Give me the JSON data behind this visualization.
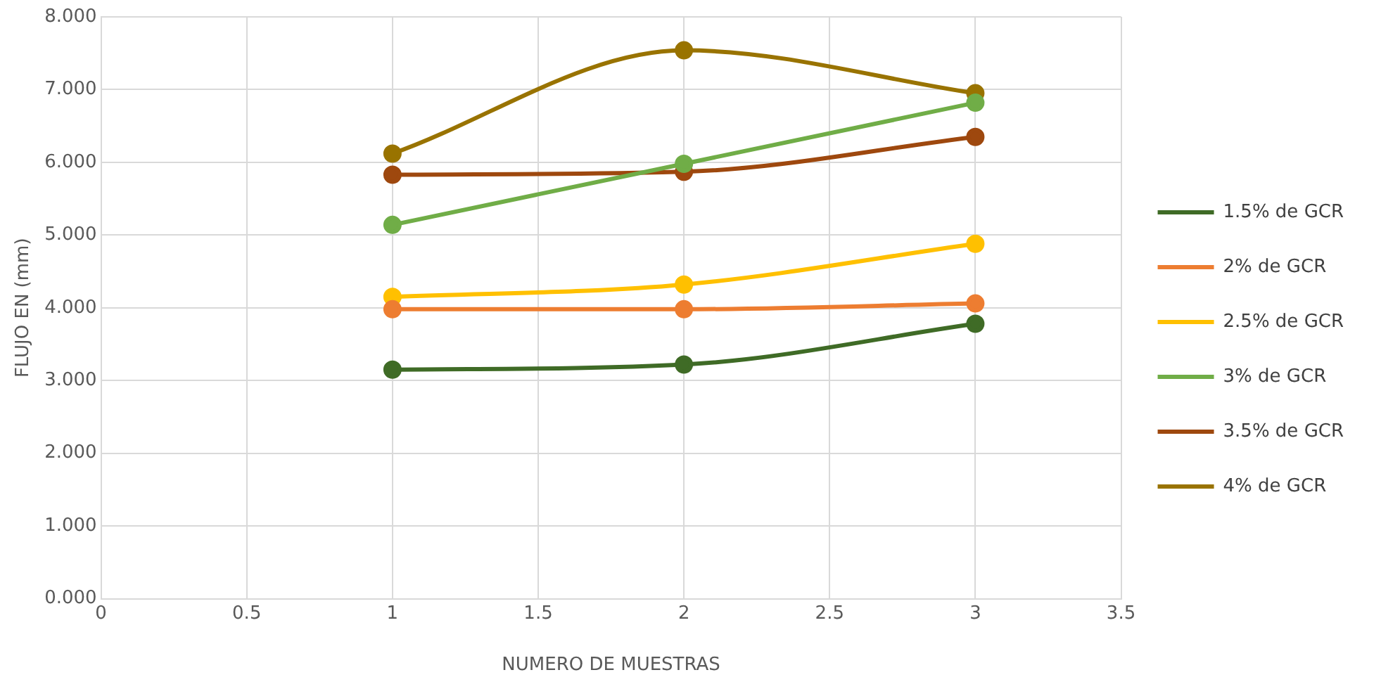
{
  "chart_data": {
    "type": "line",
    "xlabel": "NUMERO DE MUESTRAS",
    "ylabel": "FLUJO EN (mm)",
    "xlim": [
      0,
      3.5
    ],
    "xticks": [
      0,
      0.5,
      1,
      1.5,
      2,
      2.5,
      3,
      3.5
    ],
    "ylim": [
      0,
      8
    ],
    "yticks": [
      {
        "value": 0,
        "label": "0.000"
      },
      {
        "value": 1,
        "label": "1.000"
      },
      {
        "value": 2,
        "label": "2.000"
      },
      {
        "value": 3,
        "label": "3.000"
      },
      {
        "value": 4,
        "label": "4.000"
      },
      {
        "value": 5,
        "label": "5.000"
      },
      {
        "value": 6,
        "label": "6.000"
      },
      {
        "value": 7,
        "label": "7.000"
      },
      {
        "value": 8,
        "label": "8.000"
      }
    ],
    "x": [
      1,
      2,
      3
    ],
    "series": [
      {
        "name": "1.5% de GCR",
        "color": "#3f6b26",
        "values": [
          3.15,
          3.22,
          3.78
        ]
      },
      {
        "name": "2% de GCR",
        "color": "#ed7d31",
        "values": [
          3.98,
          3.98,
          4.06
        ]
      },
      {
        "name": "2.5% de GCR",
        "color": "#ffc000",
        "values": [
          4.15,
          4.32,
          4.88
        ]
      },
      {
        "name": "3% de GCR",
        "color": "#70ad47",
        "values": [
          5.14,
          5.98,
          6.82
        ]
      },
      {
        "name": "3.5% de GCR",
        "color": "#9e480e",
        "values": [
          5.83,
          5.87,
          6.35
        ]
      },
      {
        "name": "4% de GCR",
        "color": "#997300",
        "values": [
          6.12,
          7.54,
          6.95
        ]
      }
    ],
    "grid": true,
    "legend": "right",
    "marker": "circle",
    "line_style": "solid"
  }
}
